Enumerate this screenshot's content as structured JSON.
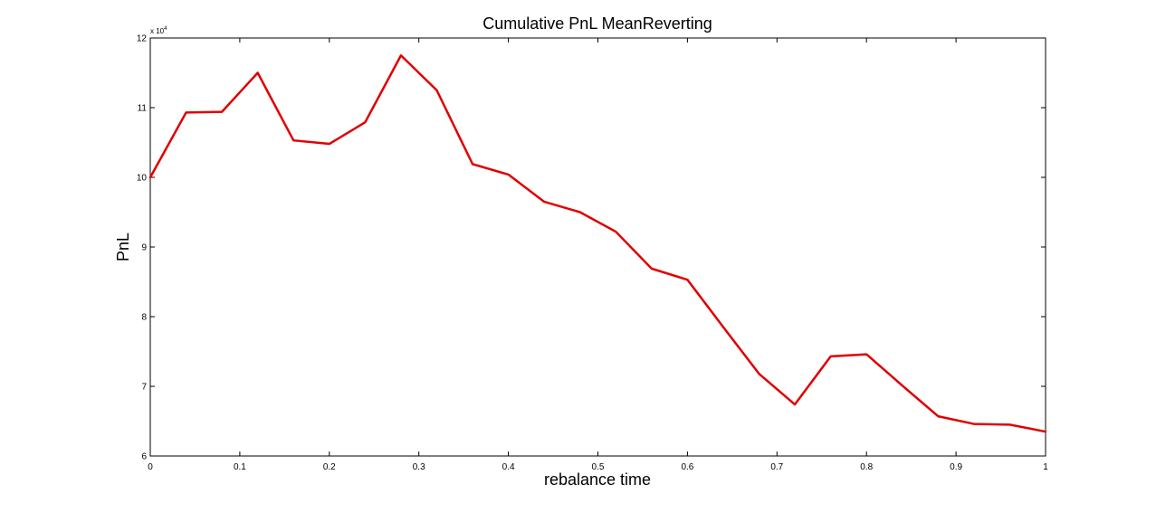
{
  "chart_data": {
    "type": "line",
    "title": "Cumulative PnL MeanReverting",
    "xlabel": "rebalance time",
    "ylabel": "PnL",
    "xlim": [
      0,
      1
    ],
    "ylim": [
      60000,
      120000
    ],
    "y_exponent": {
      "prefix": "x 10",
      "power": "4"
    },
    "x_ticks": [
      0,
      0.1,
      0.2,
      0.3,
      0.4,
      0.5,
      0.6,
      0.7,
      0.8,
      0.9,
      1
    ],
    "x_tick_labels": [
      "0",
      "0.1",
      "0.2",
      "0.3",
      "0.4",
      "0.5",
      "0.6",
      "0.7",
      "0.8",
      "0.9",
      "1"
    ],
    "y_ticks": [
      60000,
      70000,
      80000,
      90000,
      100000,
      110000,
      120000
    ],
    "y_tick_labels": [
      "6",
      "7",
      "8",
      "9",
      "10",
      "11",
      "12"
    ],
    "grid": false,
    "series": [
      {
        "color": "#e00000",
        "x": [
          0,
          0.04,
          0.08,
          0.12,
          0.16,
          0.2,
          0.24,
          0.28,
          0.32,
          0.36,
          0.4,
          0.44,
          0.48,
          0.52,
          0.56,
          0.6,
          0.64,
          0.68,
          0.72,
          0.76,
          0.8,
          0.84,
          0.88,
          0.92,
          0.96,
          1
        ],
        "values": [
          100000,
          109300,
          109400,
          115000,
          105300,
          104800,
          107900,
          117500,
          112500,
          101900,
          100400,
          96500,
          95000,
          92200,
          86900,
          85300,
          78500,
          71800,
          67400,
          74300,
          74600,
          70100,
          65700,
          64600,
          64500,
          63500
        ]
      }
    ]
  }
}
